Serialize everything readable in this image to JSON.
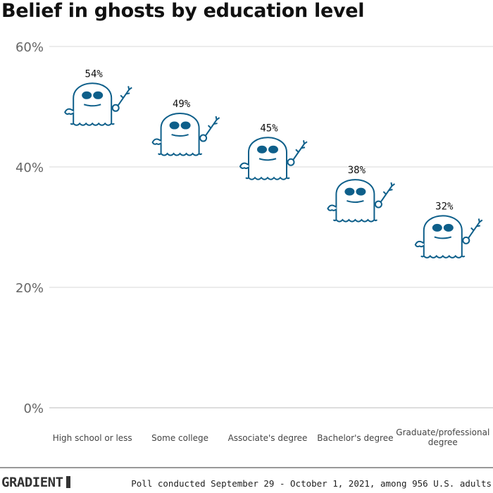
{
  "title": "Belief in ghosts by education level",
  "footer": {
    "logo": "GRADIENT",
    "note": "Poll conducted September 29 - October 1, 2021, among 956 U.S. adults"
  },
  "colors": {
    "ghost": "#0e5f8a",
    "grid": "#d9d9d9",
    "axis_text": "#666666"
  },
  "icon": "ghost-icon",
  "chart_data": {
    "type": "bar",
    "mark": "pictogram-ghost",
    "categories": [
      "High school or less",
      "Some college",
      "Associate's degree",
      "Bachelor's degree",
      "Graduate/professional degree"
    ],
    "values": [
      54,
      49,
      45,
      38,
      32
    ],
    "data_labels": [
      "54%",
      "49%",
      "45%",
      "38%",
      "32%"
    ],
    "ylim": [
      0,
      60
    ],
    "yticks": [
      0,
      20,
      40,
      60
    ],
    "ytick_labels": [
      "0%",
      "20%",
      "40%",
      "60%"
    ],
    "grid": true,
    "xlabel": "",
    "ylabel": ""
  }
}
